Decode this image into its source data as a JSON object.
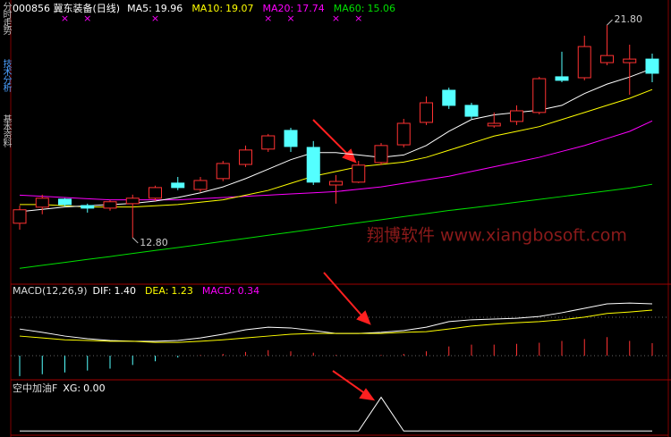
{
  "sidebar": {
    "tabs": [
      "分时走势",
      "技术分析",
      "基本资料"
    ],
    "active": 1
  },
  "watermark": "翔博软件 www.xiangbosoft.com",
  "chart_data": [
    {
      "type": "candlestick",
      "title": "000856 冀东装备(日线)",
      "ylim": [
        10.83,
        22.18
      ],
      "open": [
        13.41,
        14.09,
        14.43,
        14.16,
        14.05,
        14.24,
        14.47,
        15.11,
        14.84,
        15.3,
        15.9,
        16.55,
        17.34,
        16.62,
        15.03,
        15.15,
        15.98,
        16.73,
        17.68,
        19.04,
        18.4,
        17.53,
        17.72,
        18.1,
        19.61,
        19.57,
        20.21,
        20.21,
        20.36
      ],
      "close": [
        13.98,
        14.47,
        14.2,
        14.05,
        14.32,
        14.47,
        14.92,
        14.92,
        15.22,
        15.94,
        16.51,
        17.11,
        16.66,
        15.15,
        15.18,
        15.87,
        16.7,
        17.64,
        18.51,
        18.4,
        17.94,
        17.64,
        18.17,
        19.53,
        19.46,
        20.89,
        20.51,
        20.36,
        19.76
      ],
      "high": [
        14.16,
        14.62,
        14.47,
        14.24,
        14.39,
        14.62,
        15.0,
        15.37,
        15.37,
        16.05,
        16.7,
        17.19,
        17.45,
        16.89,
        15.45,
        16.05,
        16.81,
        17.83,
        18.78,
        19.15,
        18.51,
        18.1,
        18.4,
        19.61,
        20.67,
        21.35,
        21.8,
        20.97,
        20.59
      ],
      "low": [
        13.14,
        13.79,
        14.13,
        13.86,
        13.94,
        12.8,
        14.35,
        14.81,
        14.73,
        15.19,
        15.79,
        16.43,
        16.43,
        15.03,
        14.24,
        15.11,
        15.87,
        16.62,
        17.57,
        18.25,
        17.83,
        17.45,
        17.57,
        18.02,
        19.38,
        19.46,
        20.1,
        18.85,
        19.38
      ],
      "up_color": "#ff3232",
      "down_color": "#54ffff",
      "series": [
        {
          "name": "MA5:",
          "last": 19.96,
          "color": "#ffffff",
          "values": [
            13.9,
            14.0,
            14.1,
            14.15,
            14.2,
            14.25,
            14.35,
            14.5,
            14.7,
            14.95,
            15.3,
            15.7,
            16.1,
            16.4,
            16.4,
            16.3,
            16.2,
            16.3,
            16.7,
            17.3,
            17.8,
            18.0,
            18.1,
            18.2,
            18.4,
            18.9,
            19.3,
            19.6,
            19.96
          ]
        },
        {
          "name": "MA10:",
          "last": 19.07,
          "color": "#ffff00",
          "values": [
            14.2,
            14.2,
            14.15,
            14.1,
            14.1,
            14.1,
            14.15,
            14.2,
            14.3,
            14.4,
            14.6,
            14.8,
            15.1,
            15.4,
            15.6,
            15.8,
            15.9,
            16.0,
            16.2,
            16.5,
            16.8,
            17.1,
            17.3,
            17.5,
            17.8,
            18.1,
            18.4,
            18.7,
            19.07
          ]
        },
        {
          "name": "MA20:",
          "last": 17.74,
          "color": "#ff00ff",
          "values": [
            14.6,
            14.55,
            14.5,
            14.45,
            14.4,
            14.4,
            14.4,
            14.4,
            14.45,
            14.5,
            14.55,
            14.6,
            14.65,
            14.7,
            14.75,
            14.85,
            14.95,
            15.1,
            15.25,
            15.4,
            15.6,
            15.8,
            16.0,
            16.2,
            16.45,
            16.7,
            17.0,
            17.3,
            17.74
          ]
        },
        {
          "name": "MA60:",
          "last": 15.06,
          "color": "#00e000",
          "values": [
            11.5,
            11.63,
            11.75,
            11.88,
            12.0,
            12.13,
            12.26,
            12.38,
            12.51,
            12.64,
            12.77,
            12.9,
            13.03,
            13.16,
            13.3,
            13.43,
            13.56,
            13.69,
            13.82,
            13.95,
            14.06,
            14.18,
            14.3,
            14.42,
            14.54,
            14.66,
            14.78,
            14.9,
            15.06
          ]
        }
      ],
      "annotations": [
        {
          "index": 5,
          "value": 12.8,
          "label": "12.80"
        },
        {
          "index": 26,
          "value": 21.8,
          "label": "21.80"
        }
      ],
      "signals": {
        "label": "×",
        "color": "#ff00ff",
        "indices": [
          2,
          3,
          6,
          11,
          12,
          14,
          15
        ]
      }
    },
    {
      "type": "macd",
      "title": "MACD(12,26,9)",
      "ylim": [
        -0.65,
        1.93
      ],
      "series": [
        {
          "name": "DIF:",
          "last": 1.4,
          "last_label": "1.40",
          "color": "#ffffff",
          "values": [
            0.72,
            0.63,
            0.53,
            0.46,
            0.41,
            0.39,
            0.39,
            0.41,
            0.48,
            0.58,
            0.7,
            0.77,
            0.75,
            0.68,
            0.6,
            0.6,
            0.63,
            0.68,
            0.77,
            0.92,
            0.97,
            0.99,
            1.01,
            1.06,
            1.16,
            1.28,
            1.4,
            1.42,
            1.4
          ]
        },
        {
          "name": "DEA:",
          "last": 1.23,
          "color": "#ffff00",
          "values": [
            0.53,
            0.48,
            0.43,
            0.41,
            0.39,
            0.39,
            0.36,
            0.36,
            0.39,
            0.43,
            0.48,
            0.53,
            0.58,
            0.6,
            0.6,
            0.6,
            0.6,
            0.63,
            0.65,
            0.72,
            0.8,
            0.85,
            0.89,
            0.92,
            0.97,
            1.04,
            1.14,
            1.18,
            1.23
          ]
        }
      ],
      "bars": {
        "name": "MACD:",
        "last": 0.34,
        "color": "#ff00ff",
        "up_color": "#ff3232",
        "down_color": "#54ffff",
        "values": [
          -0.55,
          -0.5,
          -0.45,
          -0.4,
          -0.35,
          -0.25,
          -0.15,
          -0.05,
          0.02,
          0.05,
          0.1,
          0.15,
          0.12,
          0.08,
          0.02,
          0.0,
          0.02,
          0.05,
          0.12,
          0.25,
          0.3,
          0.3,
          0.32,
          0.35,
          0.4,
          0.45,
          0.5,
          0.4,
          0.34
        ]
      }
    },
    {
      "type": "line",
      "title": "空中加油F",
      "ylim": [
        -0.1,
        1.44
      ],
      "series": [
        {
          "name": "XG:",
          "last": 0,
          "last_label": "0.00",
          "color": "#ffffff",
          "values": [
            0,
            0,
            0,
            0,
            0,
            0,
            0,
            0,
            0,
            0,
            0,
            0,
            0,
            0,
            0,
            0,
            1,
            0,
            0,
            0,
            0,
            0,
            0,
            0,
            0,
            0,
            0,
            0,
            0
          ]
        }
      ]
    }
  ]
}
